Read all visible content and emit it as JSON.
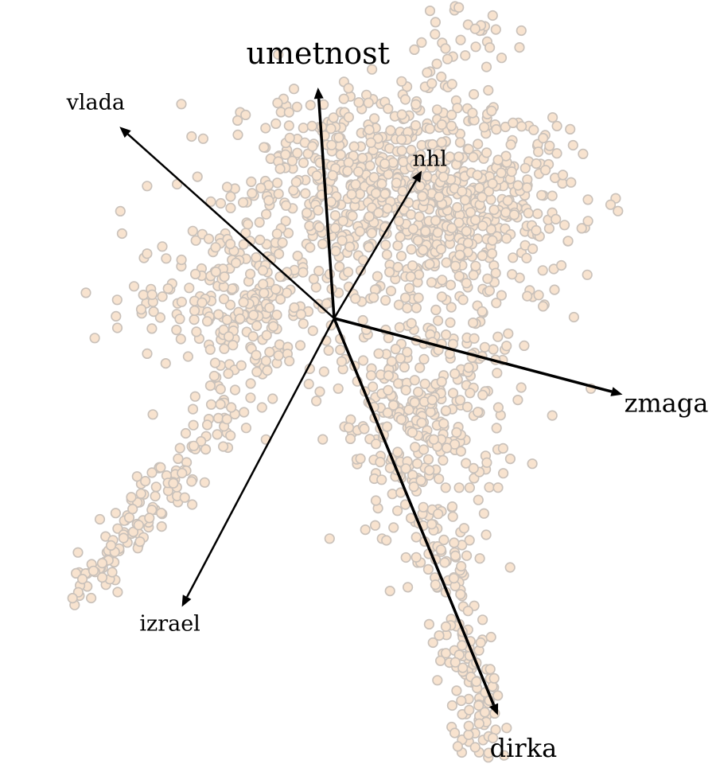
{
  "chart_data": {
    "type": "scatter",
    "title": "",
    "xlabel": "",
    "ylabel": "",
    "grid": false,
    "legend": "none",
    "point_fill": "#f8e3cf",
    "point_stroke": "#c9c1ba",
    "arrow_color": "#000000",
    "biplot_vectors": [
      {
        "label": "umetnost",
        "dx": -0.07,
        "dy": 1.0,
        "weight": 3.5
      },
      {
        "label": "vlada",
        "dx": -0.93,
        "dy": 0.83,
        "weight": 2.5
      },
      {
        "label": "nhl",
        "dx": 0.38,
        "dy": 0.64,
        "weight": 2.5
      },
      {
        "label": "zmaga",
        "dx": 1.25,
        "dy": -0.33,
        "weight": 3.5
      },
      {
        "label": "izrael",
        "dx": -0.66,
        "dy": -1.25,
        "weight": 2.5
      },
      {
        "label": "dirka",
        "dx": 0.71,
        "dy": -1.72,
        "weight": 3.5
      }
    ],
    "point_clusters": [
      {
        "cx": 0.1,
        "cy": 0.6,
        "sx": 0.28,
        "sy": 0.2,
        "n": 420
      },
      {
        "cx": 0.55,
        "cy": 0.45,
        "sx": 0.26,
        "sy": 0.22,
        "n": 420
      },
      {
        "cx": -0.4,
        "cy": 0.1,
        "sx": 0.25,
        "sy": 0.17,
        "n": 220
      },
      {
        "cx": 0.4,
        "cy": -0.4,
        "sx": 0.2,
        "sy": 0.28,
        "n": 300
      },
      {
        "cx": 0.55,
        "cy": 1.5,
        "sx": 0.12,
        "sy": 0.45,
        "n": 180
      }
    ],
    "point_tails": [
      {
        "from": [
          -0.2,
          0.0
        ],
        "to": [
          -1.1,
          -1.2
        ],
        "spread": 0.1,
        "n": 170
      },
      {
        "from": [
          0.3,
          -0.3
        ],
        "to": [
          0.7,
          -2.05
        ],
        "spread": 0.11,
        "n": 220
      },
      {
        "from": [
          0.5,
          1.5
        ],
        "to": [
          0.85,
          2.9
        ],
        "spread": 0.07,
        "n": 45
      }
    ]
  }
}
